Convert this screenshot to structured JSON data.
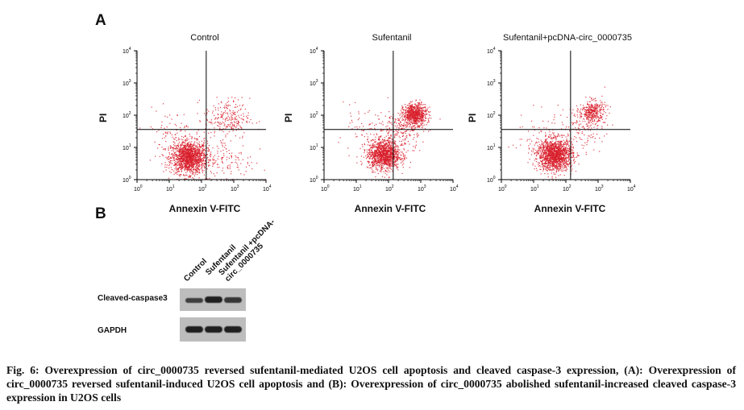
{
  "panels": {
    "a": "A",
    "b": "B"
  },
  "flow": {
    "x_label": "Annexin V-FITC",
    "y_label": "PI",
    "tick_labels": [
      "10",
      "10",
      "10",
      "10",
      "10"
    ],
    "tick_exps": [
      "0",
      "1",
      "2",
      "3",
      "4"
    ],
    "plots": [
      {
        "title": "Control"
      },
      {
        "title": "Sufentanil"
      },
      {
        "title": "Sufentanil+pcDNA-circ_0000735"
      }
    ],
    "dot_color": "#d81e2c"
  },
  "chart_data": {
    "type": "scatter",
    "x_scale": "log",
    "y_scale": "log",
    "xlim": [
      1,
      10000
    ],
    "ylim": [
      1,
      10000
    ],
    "xlabel": "Annexin V-FITC",
    "ylabel": "PI",
    "quadrant_gate": {
      "x": 140,
      "y": 36
    },
    "plots": [
      {
        "title": "Control",
        "clusters": [
          {
            "center": [
              40,
              5
            ],
            "spread": 0.28,
            "n": 1500
          },
          {
            "center": [
              600,
              80
            ],
            "spread": 0.35,
            "n": 250
          },
          {
            "center": [
              700,
              4
            ],
            "spread": 0.4,
            "n": 120
          },
          {
            "center": [
              10,
              30
            ],
            "spread": 0.4,
            "n": 80
          }
        ]
      },
      {
        "title": "Sufentanil",
        "clusters": [
          {
            "center": [
              70,
              6
            ],
            "spread": 0.25,
            "n": 1200
          },
          {
            "center": [
              650,
              110
            ],
            "spread": 0.18,
            "n": 700
          },
          {
            "center": [
              250,
              40
            ],
            "spread": 0.35,
            "n": 250
          },
          {
            "center": [
              15,
              25
            ],
            "spread": 0.4,
            "n": 80
          }
        ]
      },
      {
        "title": "Sufentanil+pcDNA-circ_0000735",
        "clusters": [
          {
            "center": [
              45,
              6
            ],
            "spread": 0.27,
            "n": 1500
          },
          {
            "center": [
              650,
              130
            ],
            "spread": 0.2,
            "n": 350
          },
          {
            "center": [
              300,
              40
            ],
            "spread": 0.35,
            "n": 120
          },
          {
            "center": [
              12,
              25
            ],
            "spread": 0.4,
            "n": 60
          }
        ]
      }
    ]
  },
  "blot": {
    "lanes": [
      "Control",
      "Sufentanil",
      "Sufentanil +pcDNA-circ_0000735"
    ],
    "rows": [
      {
        "label": "Cleaved-caspase3",
        "relative_intensity": [
          0.75,
          1.0,
          0.8
        ]
      },
      {
        "label": "GAPDH",
        "relative_intensity": [
          1.0,
          1.0,
          1.0
        ]
      }
    ]
  },
  "caption": "Fig. 6: Overexpression of circ_0000735 reversed sufentanil-mediated U2OS cell apoptosis and cleaved caspase-3 expression, (A): Overexpression of circ_0000735 reversed sufentanil-induced U2OS cell apoptosis and (B): Overexpression of circ_0000735 abolished sufentanil-increased cleaved caspase-3 expression in U2OS cells"
}
